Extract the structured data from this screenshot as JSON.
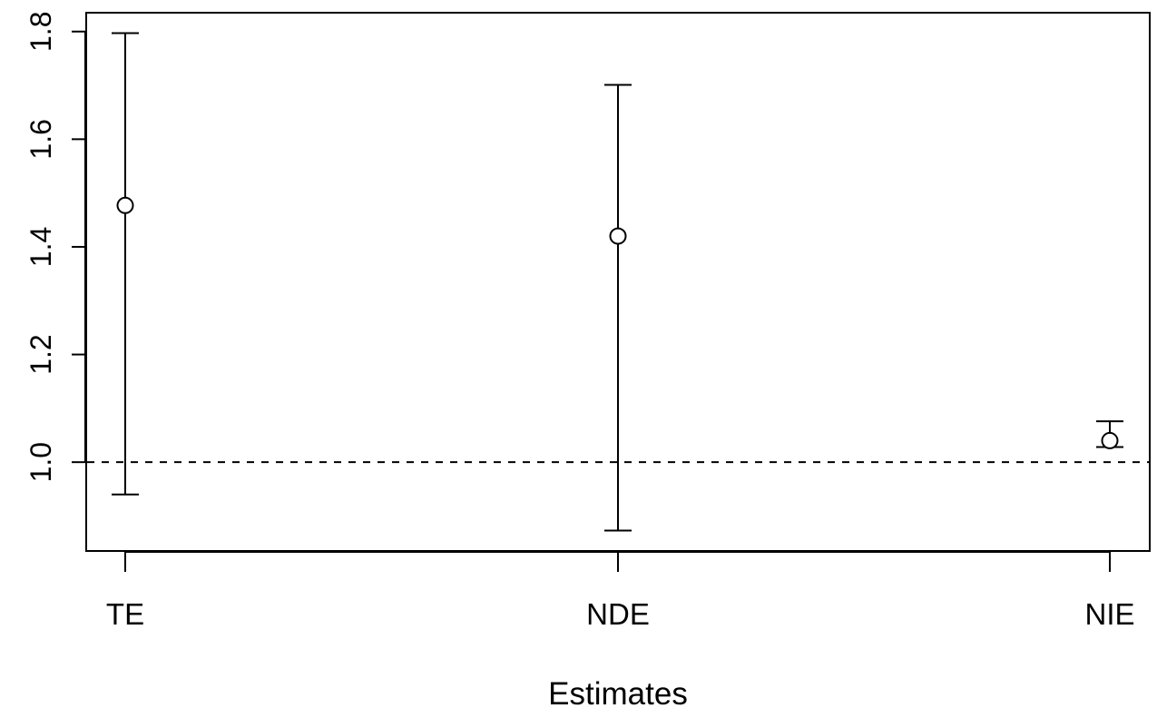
{
  "chart_data": {
    "type": "errorbar",
    "xlabel": "Estimates",
    "ylabel": "",
    "title": "",
    "categories": [
      "TE",
      "NDE",
      "NIE"
    ],
    "estimates": [
      1.477,
      1.42,
      1.04
    ],
    "lower": [
      0.94,
      0.873,
      1.028
    ],
    "upper": [
      1.797,
      1.701,
      1.076
    ],
    "reference_line": 1.0,
    "reference_line_style": "dashed",
    "ylim": [
      0.835,
      1.835
    ],
    "yticks": [
      1.0,
      1.2,
      1.4,
      1.6,
      1.8
    ],
    "ytick_labels": [
      "1.0",
      "1.2",
      "1.4",
      "1.6",
      "1.8"
    ],
    "marker": "open-circle",
    "grid": false,
    "color": "#000000"
  }
}
